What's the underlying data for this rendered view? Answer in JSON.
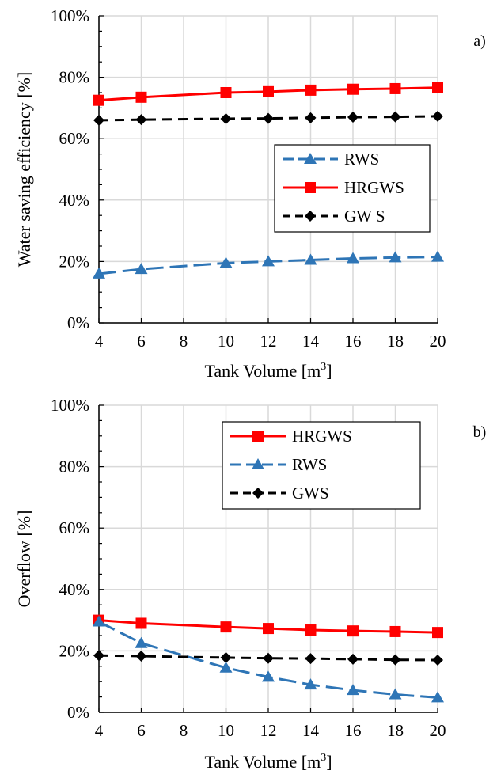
{
  "chart_data": [
    {
      "type": "line",
      "panel_label": "a)",
      "xlabel": "Tank Volume [m",
      "xlabel_sup": "3",
      "xlabel_end": "]",
      "ylabel": "Water saving efficiency [%]",
      "x": [
        4,
        6,
        10,
        12,
        14,
        16,
        18,
        20
      ],
      "xlim": [
        4,
        20
      ],
      "ylim": [
        0,
        100
      ],
      "x_ticks": [
        "4",
        "6",
        "8",
        "10",
        "12",
        "14",
        "16",
        "18",
        "20"
      ],
      "y_ticks": [
        "0%",
        "20%",
        "40%",
        "60%",
        "80%",
        "100%"
      ],
      "grid": true,
      "legend_position": "right",
      "series": [
        {
          "name": "RWS",
          "values": [
            16,
            17.5,
            19.5,
            20,
            20.5,
            21,
            21.3,
            21.5
          ],
          "color": "#2E75B6",
          "marker": "triangle",
          "dash": "long-dash"
        },
        {
          "name": "HRGWS",
          "values": [
            72.5,
            73.5,
            75,
            75.3,
            75.8,
            76.1,
            76.3,
            76.6
          ],
          "color": "#FF0000",
          "marker": "square",
          "dash": "solid"
        },
        {
          "name": "GW S",
          "values": [
            66,
            66.2,
            66.5,
            66.6,
            66.8,
            67,
            67.1,
            67.3
          ],
          "color": "#000000",
          "marker": "diamond",
          "dash": "dash"
        }
      ]
    },
    {
      "type": "line",
      "panel_label": "b)",
      "xlabel": "Tank Volume [m",
      "xlabel_sup": "3",
      "xlabel_end": "]",
      "ylabel": "Overflow [%]",
      "x": [
        4,
        6,
        10,
        12,
        14,
        16,
        18,
        20
      ],
      "xlim": [
        4,
        20
      ],
      "ylim": [
        0,
        100
      ],
      "x_ticks": [
        "4",
        "6",
        "8",
        "10",
        "12",
        "14",
        "16",
        "18",
        "20"
      ],
      "y_ticks": [
        "0%",
        "20%",
        "40%",
        "60%",
        "80%",
        "100%"
      ],
      "grid": true,
      "legend_position": "top-right",
      "series": [
        {
          "name": "HRGWS",
          "values": [
            30,
            29,
            27.8,
            27.3,
            26.8,
            26.5,
            26.3,
            26
          ],
          "color": "#FF0000",
          "marker": "square",
          "dash": "solid"
        },
        {
          "name": "RWS",
          "values": [
            29.5,
            22.5,
            14.5,
            11.5,
            9,
            7.2,
            5.8,
            4.8
          ],
          "color": "#2E75B6",
          "marker": "triangle",
          "dash": "long-dash"
        },
        {
          "name": "GWS",
          "values": [
            18.5,
            18.3,
            17.8,
            17.6,
            17.5,
            17.3,
            17.1,
            17
          ],
          "color": "#000000",
          "marker": "diamond",
          "dash": "dash"
        }
      ]
    }
  ]
}
